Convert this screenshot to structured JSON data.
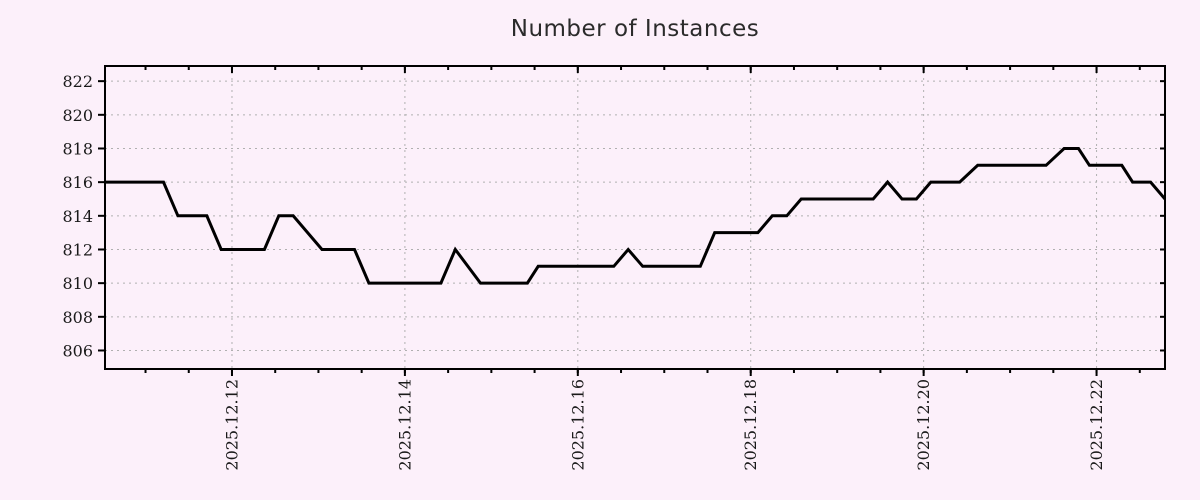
{
  "background_color": "#fcf0fa",
  "chart_data": {
    "type": "line",
    "title": "Number of Instances",
    "line_color": "#000000",
    "grid_color": "#b0b0b0",
    "frame_color": "#000000",
    "tick_text_color": "#1a1a1a",
    "title_color": "#2b2b2b",
    "legend_position": "none",
    "grid": "dotted",
    "x_range": [
      "2025-12-10T12:45",
      "2025-12-22T19:00"
    ],
    "ylim": [
      804.9,
      822.9
    ],
    "y_ticks": [
      806,
      808,
      810,
      812,
      814,
      816,
      818,
      820,
      822
    ],
    "x_major_ticks": [
      {
        "t": "2025-12-12T00:00",
        "label": "2025.12.12"
      },
      {
        "t": "2025-12-14T00:00",
        "label": "2025.12.14"
      },
      {
        "t": "2025-12-16T00:00",
        "label": "2025.12.16"
      },
      {
        "t": "2025-12-18T00:00",
        "label": "2025.12.18"
      },
      {
        "t": "2025-12-20T00:00",
        "label": "2025.12.20"
      },
      {
        "t": "2025-12-22T00:00",
        "label": "2025.12.22"
      }
    ],
    "x_minor_interval_hours": 12,
    "xlabel": "",
    "ylabel": "",
    "points": [
      [
        "2025-12-10T12:45",
        816
      ],
      [
        "2025-12-11T05:00",
        816
      ],
      [
        "2025-12-11T09:00",
        814
      ],
      [
        "2025-12-11T17:00",
        814
      ],
      [
        "2025-12-11T21:00",
        812
      ],
      [
        "2025-12-12T09:00",
        812
      ],
      [
        "2025-12-12T13:00",
        814
      ],
      [
        "2025-12-12T17:00",
        814
      ],
      [
        "2025-12-13T01:00",
        812
      ],
      [
        "2025-12-13T10:00",
        812
      ],
      [
        "2025-12-13T14:00",
        810
      ],
      [
        "2025-12-14T10:00",
        810
      ],
      [
        "2025-12-14T14:00",
        812
      ],
      [
        "2025-12-14T21:00",
        810
      ],
      [
        "2025-12-15T10:00",
        810
      ],
      [
        "2025-12-15T13:00",
        811
      ],
      [
        "2025-12-16T10:00",
        811
      ],
      [
        "2025-12-16T14:00",
        812
      ],
      [
        "2025-12-16T18:00",
        811
      ],
      [
        "2025-12-17T10:00",
        811
      ],
      [
        "2025-12-17T14:00",
        813
      ],
      [
        "2025-12-18T02:00",
        813
      ],
      [
        "2025-12-18T06:00",
        814
      ],
      [
        "2025-12-18T10:00",
        814
      ],
      [
        "2025-12-18T14:00",
        815
      ],
      [
        "2025-12-19T10:00",
        815
      ],
      [
        "2025-12-19T14:00",
        816
      ],
      [
        "2025-12-19T18:00",
        815
      ],
      [
        "2025-12-19T22:00",
        815
      ],
      [
        "2025-12-20T02:00",
        816
      ],
      [
        "2025-12-20T10:00",
        816
      ],
      [
        "2025-12-20T15:00",
        817
      ],
      [
        "2025-12-21T10:00",
        817
      ],
      [
        "2025-12-21T15:00",
        818
      ],
      [
        "2025-12-21T19:00",
        818
      ],
      [
        "2025-12-21T22:00",
        817
      ],
      [
        "2025-12-22T07:00",
        817
      ],
      [
        "2025-12-22T10:00",
        816
      ],
      [
        "2025-12-22T15:00",
        816
      ],
      [
        "2025-12-22T19:00",
        815
      ]
    ]
  }
}
